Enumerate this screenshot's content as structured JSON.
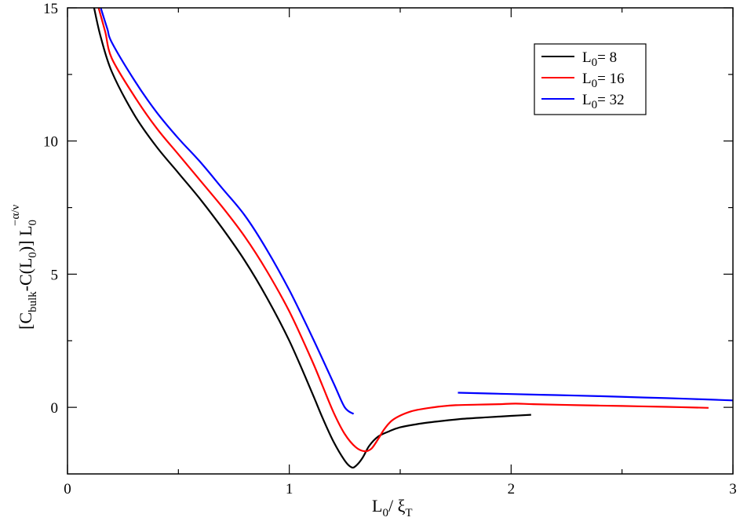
{
  "chart_data": {
    "type": "line",
    "xlabel": {
      "main": "L",
      "sub": "0",
      "sep": "/ ",
      "main2": "ξ",
      "sub2": "T"
    },
    "ylabel": {
      "a": "[C",
      "sub_a": "bulk",
      "b": "-C(L",
      "sub_b": "0",
      "c": ")] L",
      "sub_c": "0",
      "sup_c": "−α/ν"
    },
    "xlim": [
      0,
      3
    ],
    "ylim": [
      -2.5,
      15
    ],
    "x_ticks": [
      0,
      1,
      2,
      3
    ],
    "x_tick_labels": [
      "0",
      "1",
      "2",
      "3"
    ],
    "y_ticks": [
      0,
      5,
      10,
      15
    ],
    "y_tick_labels": [
      "0",
      "5",
      "10",
      "15"
    ],
    "legend": {
      "placement": "top-right",
      "entries": [
        {
          "pre": "L",
          "sub": "0",
          "post": "=  8",
          "color": "#000000"
        },
        {
          "pre": "L",
          "sub": "0",
          "post": "= 16",
          "color": "#ff0000"
        },
        {
          "pre": "L",
          "sub": "0",
          "post": "= 32",
          "color": "#0000ff"
        }
      ]
    },
    "series": [
      {
        "color": "#000000",
        "segments": [
          [
            [
              0.12,
              15.0
            ],
            [
              0.15,
              13.9
            ],
            [
              0.2,
              12.6
            ],
            [
              0.3,
              11.0
            ],
            [
              0.4,
              9.8
            ],
            [
              0.5,
              8.8
            ],
            [
              0.6,
              7.8
            ],
            [
              0.7,
              6.7
            ],
            [
              0.8,
              5.5
            ],
            [
              0.9,
              4.1
            ],
            [
              1.0,
              2.5
            ],
            [
              1.1,
              0.6
            ],
            [
              1.15,
              -0.4
            ],
            [
              1.2,
              -1.3
            ],
            [
              1.25,
              -2.0
            ],
            [
              1.28,
              -2.25
            ],
            [
              1.3,
              -2.2
            ],
            [
              1.33,
              -1.9
            ],
            [
              1.36,
              -1.45
            ],
            [
              1.4,
              -1.1
            ],
            [
              1.45,
              -0.9
            ],
            [
              1.5,
              -0.75
            ],
            [
              1.6,
              -0.6
            ],
            [
              1.7,
              -0.5
            ],
            [
              1.8,
              -0.42
            ],
            [
              1.9,
              -0.37
            ],
            [
              2.0,
              -0.32
            ],
            [
              2.09,
              -0.28
            ]
          ]
        ]
      },
      {
        "color": "#ff0000",
        "segments": [
          [
            [
              0.14,
              15.0
            ],
            [
              0.17,
              14.1
            ],
            [
              0.2,
              13.1
            ],
            [
              0.3,
              11.7
            ],
            [
              0.4,
              10.5
            ],
            [
              0.5,
              9.5
            ],
            [
              0.6,
              8.5
            ],
            [
              0.7,
              7.5
            ],
            [
              0.8,
              6.4
            ],
            [
              0.9,
              5.1
            ],
            [
              1.0,
              3.6
            ],
            [
              1.1,
              1.8
            ],
            [
              1.15,
              0.8
            ],
            [
              1.2,
              -0.2
            ],
            [
              1.25,
              -1.0
            ],
            [
              1.3,
              -1.5
            ],
            [
              1.34,
              -1.65
            ],
            [
              1.37,
              -1.55
            ],
            [
              1.4,
              -1.2
            ],
            [
              1.43,
              -0.8
            ],
            [
              1.47,
              -0.45
            ],
            [
              1.55,
              -0.15
            ],
            [
              1.65,
              0.0
            ],
            [
              1.75,
              0.08
            ],
            [
              1.85,
              0.1
            ],
            [
              1.95,
              0.12
            ],
            [
              2.02,
              0.14
            ],
            [
              2.1,
              0.12
            ],
            [
              2.3,
              0.08
            ],
            [
              2.5,
              0.05
            ],
            [
              2.7,
              0.02
            ],
            [
              2.89,
              -0.02
            ]
          ]
        ]
      },
      {
        "color": "#0000ff",
        "segments": [
          [
            [
              0.15,
              15.0
            ],
            [
              0.18,
              14.2
            ],
            [
              0.2,
              13.7
            ],
            [
              0.3,
              12.3
            ],
            [
              0.4,
              11.1
            ],
            [
              0.5,
              10.1
            ],
            [
              0.6,
              9.2
            ],
            [
              0.7,
              8.2
            ],
            [
              0.8,
              7.2
            ],
            [
              0.9,
              5.9
            ],
            [
              1.0,
              4.4
            ],
            [
              1.1,
              2.7
            ],
            [
              1.2,
              0.9
            ],
            [
              1.25,
              0.0
            ],
            [
              1.29,
              -0.25
            ]
          ],
          [
            [
              1.76,
              0.55
            ],
            [
              2.0,
              0.5
            ],
            [
              2.2,
              0.46
            ],
            [
              2.4,
              0.42
            ],
            [
              2.6,
              0.37
            ],
            [
              2.8,
              0.32
            ],
            [
              3.0,
              0.26
            ]
          ]
        ]
      }
    ]
  }
}
